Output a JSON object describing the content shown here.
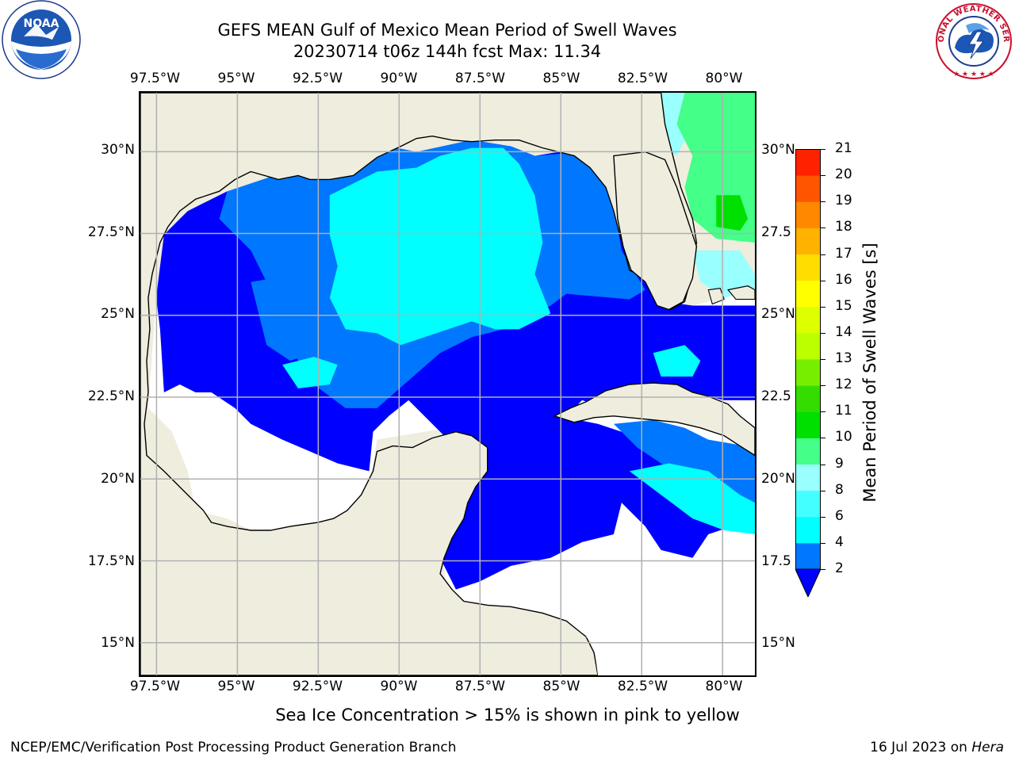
{
  "header": {
    "title": "GEFS MEAN Gulf of Mexico Mean Period of Swell Waves",
    "subtitle": "20230714 t06z 144h fcst   Max: 11.34"
  },
  "logos": {
    "left": {
      "icon": "noaa-logo-icon",
      "text": "NOAA"
    },
    "right": {
      "icon": "nws-logo-icon",
      "text": "NATIONAL WEATHER SERVICE"
    }
  },
  "map": {
    "lon_ticks": [
      "97.5°W",
      "95°W",
      "92.5°W",
      "90°W",
      "87.5°W",
      "85°W",
      "82.5°W",
      "80°W"
    ],
    "lat_ticks_left": [
      "30°N",
      "27.5°N",
      "25°N",
      "22.5°N",
      "20°N",
      "17.5°N",
      "15°N"
    ],
    "lat_ticks_right": [
      "30°N",
      "27.5",
      "25°N",
      "22.5",
      "20°N",
      "17.5",
      "15°N"
    ],
    "lon_range": [
      -98,
      -79
    ],
    "lat_range": [
      14,
      31.8
    ],
    "grid": true,
    "colors": {
      "land": "#efedde",
      "no_data": "#ffffff",
      "coast": "#000000",
      "grid": "#b0b0b0"
    }
  },
  "colorbar": {
    "label": "Mean Period of Swell Waves [s]",
    "ticks": [
      "2",
      "4",
      "6",
      "8",
      "9",
      "10",
      "11",
      "12",
      "13",
      "14",
      "15",
      "16",
      "17",
      "18",
      "19",
      "20",
      "21"
    ],
    "colors": [
      "#0000ff",
      "#0077ff",
      "#00ffff",
      "#44ffff",
      "#99ffff",
      "#44ff88",
      "#00e000",
      "#33dd00",
      "#77ee00",
      "#bbff00",
      "#ddff00",
      "#ffff00",
      "#ffdd00",
      "#ffb300",
      "#ff8800",
      "#ff5500",
      "#ff2200",
      "#ff0000"
    ],
    "extend": "min"
  },
  "note": "Sea Ice Concentration > 15% is shown in pink to yellow",
  "footer": {
    "left": "NCEP/EMC/Verification Post Processing Product Generation Branch",
    "date": "16 Jul 2023 on ",
    "host": "Hera"
  }
}
